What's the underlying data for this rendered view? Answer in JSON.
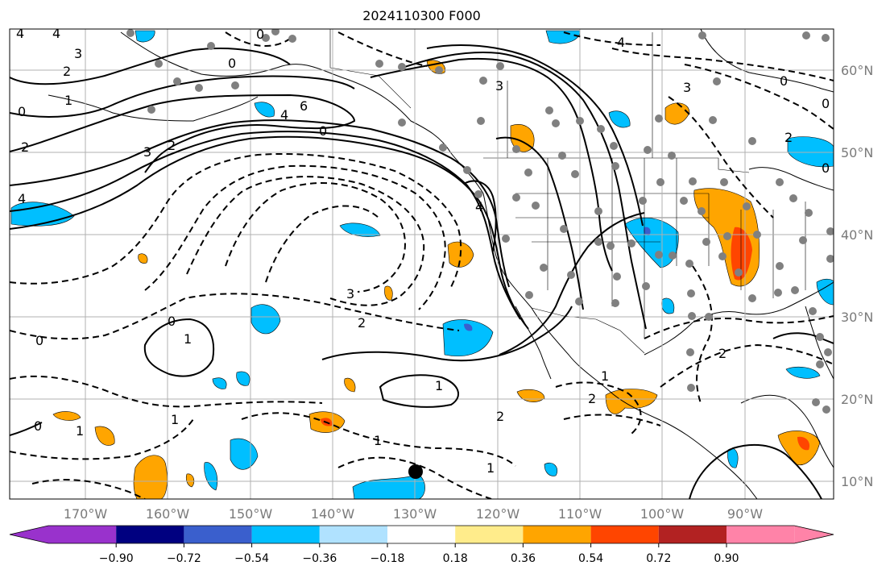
{
  "title": "2024110300 F000",
  "lon_labels": [
    "170°W",
    "160°W",
    "150°W",
    "140°W",
    "130°W",
    "120°W",
    "110°W",
    "100°W",
    "90°W"
  ],
  "lat_labels": [
    "60°N",
    "50°N",
    "40°N",
    "30°N",
    "20°N",
    "10°N"
  ],
  "colorbar": {
    "colors": [
      "#9932cc",
      "#000080",
      "#3a5fcd",
      "#00bfff",
      "#b0e2ff",
      "#ffffff",
      "#ffec8b",
      "#ffa500",
      "#ff4500",
      "#b22222",
      "#ff83a8"
    ],
    "tick_labels": [
      "−0.90",
      "−0.72",
      "−0.54",
      "−0.36",
      "−0.18",
      "0.18",
      "0.36",
      "0.54",
      "0.72",
      "0.90"
    ]
  },
  "contour_labels": [
    "4",
    "4",
    "0",
    "3",
    "3",
    "0",
    "2",
    "1",
    "0",
    "2",
    "6",
    "4",
    "0",
    "3",
    "2",
    "4",
    "4",
    "3",
    "1",
    "0",
    "2",
    "0",
    "3",
    "2",
    "4",
    "0",
    "2",
    "0",
    "2",
    "1",
    "1",
    "1",
    "2",
    "0",
    "1",
    "1",
    "0",
    "1"
  ],
  "colors": {
    "land_outline": "#000000",
    "station": "#808080",
    "grid": "#b0b0b0"
  }
}
